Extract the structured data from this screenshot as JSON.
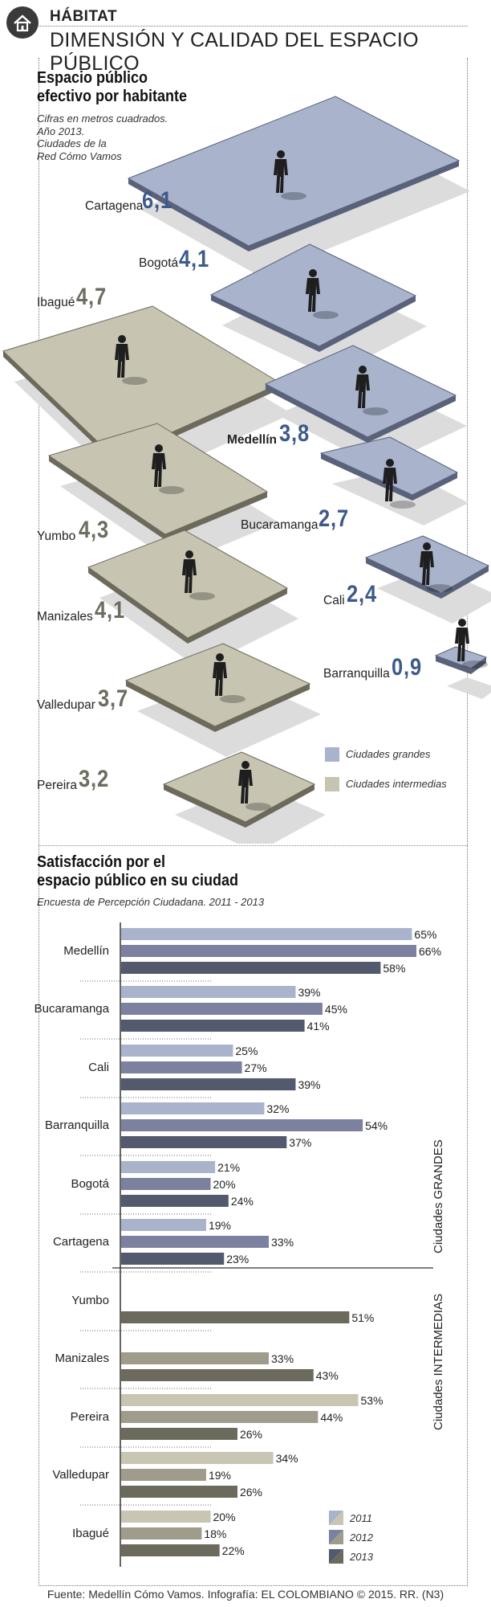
{
  "header": {
    "section": "HÁBITAT",
    "title": "DIMENSIÓN Y CALIDAD DEL ESPACIO PÚBLICO"
  },
  "space_section": {
    "title_line1": "Espacio público",
    "title_line2": "efectivo por habitante",
    "sub_line1": "Cifras en metros cuadrados.",
    "sub_line2": "Año 2013.",
    "sub_line3": "Ciudades de la",
    "sub_line4": "Red Cómo Vamos",
    "cities": [
      {
        "name": "Cartagena",
        "value": "6,1",
        "group": "grandes"
      },
      {
        "name": "Bogotá",
        "value": "4,1",
        "group": "grandes"
      },
      {
        "name": "Ibagué",
        "value": "4,7",
        "group": "intermedias"
      },
      {
        "name": "Medellín",
        "value": "3,8",
        "group": "grandes"
      },
      {
        "name": "Bucaramanga",
        "value": "2,7",
        "group": "grandes"
      },
      {
        "name": "Yumbo",
        "value": "4,3",
        "group": "intermedias"
      },
      {
        "name": "Cali",
        "value": "2,4",
        "group": "grandes"
      },
      {
        "name": "Manizales",
        "value": "4,1",
        "group": "intermedias"
      },
      {
        "name": "Barranquilla",
        "value": "0,9",
        "group": "grandes"
      },
      {
        "name": "Valledupar",
        "value": "3,7",
        "group": "intermedias"
      },
      {
        "name": "Pereira",
        "value": "3,2",
        "group": "intermedias"
      }
    ],
    "legend": {
      "grandes": "Ciudades grandes",
      "intermedias": "Ciudades intermedias"
    },
    "colors": {
      "grandes_top": "#a9b3cc",
      "grandes_edge": "#59627a",
      "intermedias_top": "#c7c4b2",
      "intermedias_edge": "#6d6a5c",
      "value_grandes": "#3d5a8a",
      "value_intermedias": "#6e6c60",
      "shadow": "#dcdcdc",
      "person": "#1e1e1e"
    }
  },
  "satisfaction_section": {
    "title_line1": "Satisfacción por el",
    "title_line2": "espacio público en su ciudad",
    "subtitle": "Encuesta de Percepción Ciudadana. 2011 - 2013",
    "group_labels": {
      "grandes": "Ciudades GRANDES",
      "intermedias": "Ciudades INTERMEDIAS"
    },
    "legend_years": [
      "2011",
      "2012",
      "2013"
    ],
    "colors": {
      "grandes": [
        "#a9b3cc",
        "#7b819e",
        "#545a6e"
      ],
      "intermedias": [
        "#c8c6b3",
        "#9f9c8c",
        "#6c6a5c"
      ]
    }
  },
  "chart_data": {
    "type": "bar",
    "orientation": "horizontal",
    "title": "Satisfacción por el espacio público en su ciudad",
    "subtitle": "Encuesta de Percepción Ciudadana. 2011 - 2013",
    "categories": [
      "Medellín",
      "Bucaramanga",
      "Cali",
      "Barranquilla",
      "Bogotá",
      "Cartagena",
      "Yumbo",
      "Manizales",
      "Pereira",
      "Valledupar",
      "Ibagué"
    ],
    "category_groups": [
      "grandes",
      "grandes",
      "grandes",
      "grandes",
      "grandes",
      "grandes",
      "intermedias",
      "intermedias",
      "intermedias",
      "intermedias",
      "intermedias"
    ],
    "series": [
      {
        "name": "2011",
        "values": [
          65,
          39,
          25,
          32,
          21,
          19,
          null,
          null,
          53,
          34,
          20
        ]
      },
      {
        "name": "2012",
        "values": [
          66,
          45,
          27,
          54,
          20,
          33,
          null,
          33,
          44,
          19,
          18
        ]
      },
      {
        "name": "2013",
        "values": [
          58,
          41,
          39,
          37,
          24,
          23,
          51,
          43,
          26,
          26,
          22
        ]
      }
    ],
    "value_suffix": "%",
    "xlim": [
      0,
      66
    ],
    "legend_position": "bottom-right",
    "grid": false
  },
  "footer": {
    "source": "Fuente: Medellín Cómo Vamos. Infografía: EL COLOMBIANO © 2015. RR. (N3)"
  }
}
